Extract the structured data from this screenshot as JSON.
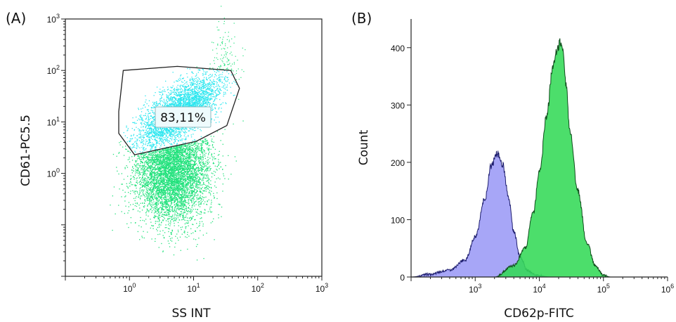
{
  "chart_data": [
    {
      "panel_label": "(A)",
      "type": "scatter",
      "xlabel": "SS INT",
      "ylabel": "CD61-PC5.5",
      "x_scale": "log",
      "y_scale": "log",
      "xlim": [
        0.1,
        1000
      ],
      "ylim": [
        0.01,
        1000
      ],
      "x_ticks": [
        "10^0",
        "10^1",
        "10^2",
        "10^3"
      ],
      "y_ticks": [
        "10^0",
        "10^1",
        "10^2",
        "10^3"
      ],
      "gate": {
        "label": "83,11%",
        "polygon": [
          [
            0.8,
            100
          ],
          [
            5.6,
            120
          ],
          [
            38,
            100
          ],
          [
            52,
            45
          ],
          [
            33,
            8.5
          ],
          [
            11,
            4.2
          ],
          [
            1.2,
            2.3
          ],
          [
            0.68,
            6
          ],
          [
            0.68,
            16
          ]
        ]
      },
      "populations": [
        {
          "name": "",
          "color": "#22e27c",
          "description": "",
          "center": [
            4.5,
            1.0
          ],
          "note": ""
        },
        {
          "name": "",
          "color": "#2ae6ef",
          "center": [
            6,
            16
          ]
        }
      ],
      "grid": false
    },
    {
      "panel_label": "(B)",
      "type": "area",
      "xlabel": "CD62p-FITC",
      "ylabel": "Count",
      "x_scale": "log",
      "xlim": [
        100,
        1000000
      ],
      "ylim": [
        0,
        450
      ],
      "x_ticks": [
        "10^3",
        "10^4",
        "10^5",
        "10^6"
      ],
      "y_ticks": [
        0,
        100,
        200,
        300,
        400
      ],
      "series": [
        {
          "name": "",
          "color": "#9d9cf6",
          "x": [
            100,
            200,
            400,
            700,
            1000,
            1400,
            1800,
            2200,
            2700,
            3300,
            4000,
            5000,
            6500,
            9000,
            15000
          ],
          "y": [
            0,
            5,
            12,
            30,
            70,
            135,
            195,
            215,
            195,
            140,
            80,
            35,
            12,
            3,
            0
          ]
        },
        {
          "name": "",
          "color": "#33d957",
          "x": [
            2000,
            4000,
            6000,
            8000,
            10000,
            13000,
            16000,
            19000,
            21000,
            23000,
            26000,
            30000,
            40000,
            55000,
            75000,
            100000,
            130000
          ],
          "y": [
            0,
            20,
            50,
            110,
            180,
            280,
            360,
            395,
            410,
            395,
            340,
            250,
            150,
            60,
            20,
            3,
            0
          ]
        }
      ],
      "grid": false
    }
  ]
}
